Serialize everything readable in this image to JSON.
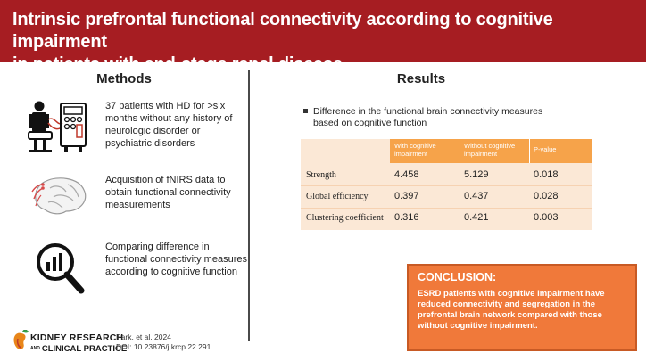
{
  "header": {
    "title_line1": "Intrinsic prefrontal functional connectivity according to cognitive impairment",
    "title_line2": "in patients with end-stage renal disease"
  },
  "methods": {
    "title": "Methods",
    "items": [
      {
        "icon": "hemodialysis-patient-icon",
        "text": "37 patients with HD for >six months without any history of neurologic disorder or psychiatric disorders"
      },
      {
        "icon": "brain-fnirs-icon",
        "text": "Acquisition of fNIRS data to obtain functional connectivity measurements"
      },
      {
        "icon": "magnifier-chart-icon",
        "text": "Comparing difference in functional connectivity measures according to cognitive function"
      }
    ]
  },
  "results": {
    "title": "Results",
    "bullet_line1": "Difference in the functional brain connectivity measures",
    "bullet_line2": "based on cognitive function",
    "table": {
      "columns": [
        "",
        "With cognitive impairment",
        "Without cognitive impairment",
        "P-value"
      ],
      "rows": [
        {
          "label": "Strength",
          "with": "4.458",
          "without": "5.129",
          "p": "0.018"
        },
        {
          "label": "Global efficiency",
          "with": "0.397",
          "without": "0.437",
          "p": "0.028"
        },
        {
          "label": "Clustering coefficient",
          "with": "0.316",
          "without": "0.421",
          "p": "0.003"
        }
      ]
    }
  },
  "conclusion": {
    "title": "CONCLUSION:",
    "body": "ESRD patients with cognitive impairment have reduced connectivity and segregation in the prefrontal brain network compared with those without cognitive impairment."
  },
  "footer": {
    "logo_line1": "KIDNEY RESEARCH",
    "logo_and": "AND",
    "logo_line2": "CLINICAL PRACTICE",
    "citation_line1": "Park, et al. 2024",
    "citation_line2": "DOI: 10.23876/j.krcp.22.291"
  },
  "colors": {
    "header_bg": "#a61d22",
    "table_header": "#f6a34a",
    "table_body": "#fbe8d6",
    "conclusion_bg": "#f0793a"
  }
}
